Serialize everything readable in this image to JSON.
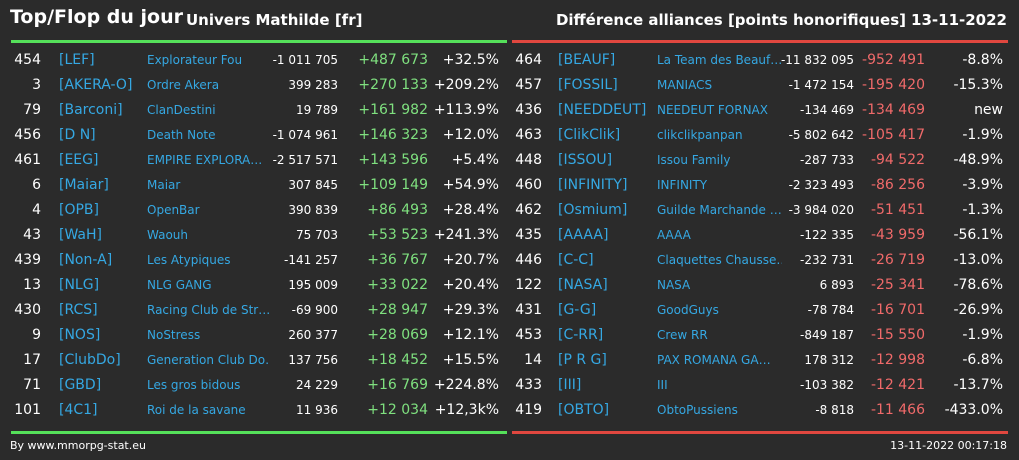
{
  "header": {
    "title": "Top/Flop du jour",
    "universe": "Univers Mathilde [fr]",
    "metric": "Différence alliances [points honorifiques]",
    "date": "13-11-2022"
  },
  "colors": {
    "background": "#2b2b2b",
    "gain": "#7fe07f",
    "loss": "#f06a6a",
    "link": "#35a8e3",
    "top_rule": "#55e05a",
    "flop_rule": "#e0473f"
  },
  "top": [
    {
      "rank": "454",
      "tag": "[LEF]",
      "name": "Explorateur Fou",
      "total": "-1 011 705",
      "diff": "+487 673",
      "pct": "+32.5%"
    },
    {
      "rank": "3",
      "tag": "[AKERA-O]",
      "name": "Ordre Akera",
      "total": "399 283",
      "diff": "+270 133",
      "pct": "+209.2%"
    },
    {
      "rank": "79",
      "tag": "[Barconi]",
      "name": "ClanDestini",
      "total": "19 789",
      "diff": "+161 982",
      "pct": "+113.9%"
    },
    {
      "rank": "456",
      "tag": "[D N]",
      "name": "Death Note",
      "total": "-1 074 961",
      "diff": "+146 323",
      "pct": "+12.0%"
    },
    {
      "rank": "461",
      "tag": "[EEG]",
      "name": "EMPIRE EXPLORA…",
      "total": "-2 517 571",
      "diff": "+143 596",
      "pct": "+5.4%"
    },
    {
      "rank": "6",
      "tag": "[Maiar]",
      "name": "Maiar",
      "total": "307 845",
      "diff": "+109 149",
      "pct": "+54.9%"
    },
    {
      "rank": "4",
      "tag": "[OPB]",
      "name": "OpenBar",
      "total": "390 839",
      "diff": "+86 493",
      "pct": "+28.4%"
    },
    {
      "rank": "43",
      "tag": "[WaH]",
      "name": "Waouh",
      "total": "75 703",
      "diff": "+53 523",
      "pct": "+241.3%"
    },
    {
      "rank": "439",
      "tag": "[Non-A]",
      "name": "Les Atypiques",
      "total": "-141 257",
      "diff": "+36 767",
      "pct": "+20.7%"
    },
    {
      "rank": "13",
      "tag": "[NLG]",
      "name": "NLG GANG",
      "total": "195 009",
      "diff": "+33 022",
      "pct": "+20.4%"
    },
    {
      "rank": "430",
      "tag": "[RCS]",
      "name": "Racing Club de Str…",
      "total": "-69 900",
      "diff": "+28 947",
      "pct": "+29.3%"
    },
    {
      "rank": "9",
      "tag": "[NOS]",
      "name": "NoStress",
      "total": "260 377",
      "diff": "+28 069",
      "pct": "+12.1%"
    },
    {
      "rank": "17",
      "tag": "[ClubDo]",
      "name": "Generation Club Do…",
      "total": "137 756",
      "diff": "+18 452",
      "pct": "+15.5%"
    },
    {
      "rank": "71",
      "tag": "[GBD]",
      "name": "Les gros bidous",
      "total": "24 229",
      "diff": "+16 769",
      "pct": "+224.8%"
    },
    {
      "rank": "101",
      "tag": "[4C1]",
      "name": "Roi de la savane",
      "total": "11 936",
      "diff": "+12 034",
      "pct": "+12,3k%"
    }
  ],
  "flop": [
    {
      "rank": "464",
      "tag": "[BEAUF]",
      "name": "La Team des Beauf…",
      "total": "-11 832 095",
      "diff": "-952 491",
      "pct": "-8.8%"
    },
    {
      "rank": "457",
      "tag": "[FOSSIL]",
      "name": "MANIACS",
      "total": "-1 472 154",
      "diff": "-195 420",
      "pct": "-15.3%"
    },
    {
      "rank": "436",
      "tag": "[NEEDDEUT]",
      "name": "NEEDEUT FORNAX",
      "total": "-134 469",
      "diff": "-134 469",
      "pct": "new"
    },
    {
      "rank": "463",
      "tag": "[ClikClik]",
      "name": "clikclikpanpan",
      "total": "-5 802 642",
      "diff": "-105 417",
      "pct": "-1.9%"
    },
    {
      "rank": "448",
      "tag": "[ISSOU]",
      "name": "Issou Family",
      "total": "-287 733",
      "diff": "-94 522",
      "pct": "-48.9%"
    },
    {
      "rank": "460",
      "tag": "[INFINITY]",
      "name": "INFINITY",
      "total": "-2 323 493",
      "diff": "-86 256",
      "pct": "-3.9%"
    },
    {
      "rank": "462",
      "tag": "[Osmium]",
      "name": "Guilde Marchande …",
      "total": "-3 984 020",
      "diff": "-51 451",
      "pct": "-1.3%"
    },
    {
      "rank": "435",
      "tag": "[AAAA]",
      "name": "AAAA",
      "total": "-122 335",
      "diff": "-43 959",
      "pct": "-56.1%"
    },
    {
      "rank": "446",
      "tag": "[C-C]",
      "name": "Claquettes Chausse…",
      "total": "-232 731",
      "diff": "-26 719",
      "pct": "-13.0%"
    },
    {
      "rank": "122",
      "tag": "[NASA]",
      "name": "NASA",
      "total": "6 893",
      "diff": "-25 341",
      "pct": "-78.6%"
    },
    {
      "rank": "431",
      "tag": "[G-G]",
      "name": "GoodGuys",
      "total": "-78 784",
      "diff": "-16 701",
      "pct": "-26.9%"
    },
    {
      "rank": "453",
      "tag": "[C-RR]",
      "name": "Crew RR",
      "total": "-849 187",
      "diff": "-15 550",
      "pct": "-1.9%"
    },
    {
      "rank": "14",
      "tag": "[P R G]",
      "name": "PAX ROMANA GA…",
      "total": "178 312",
      "diff": "-12 998",
      "pct": "-6.8%"
    },
    {
      "rank": "433",
      "tag": "[III]",
      "name": "III",
      "total": "-103 382",
      "diff": "-12 421",
      "pct": "-13.7%"
    },
    {
      "rank": "419",
      "tag": "[OBTO]",
      "name": "ObtoPussiens",
      "total": "-8 818",
      "diff": "-11 466",
      "pct": "-433.0%"
    }
  ],
  "footer": {
    "source": "By www.mmorpg-stat.eu",
    "timestamp": "13-11-2022 00:17:18"
  }
}
